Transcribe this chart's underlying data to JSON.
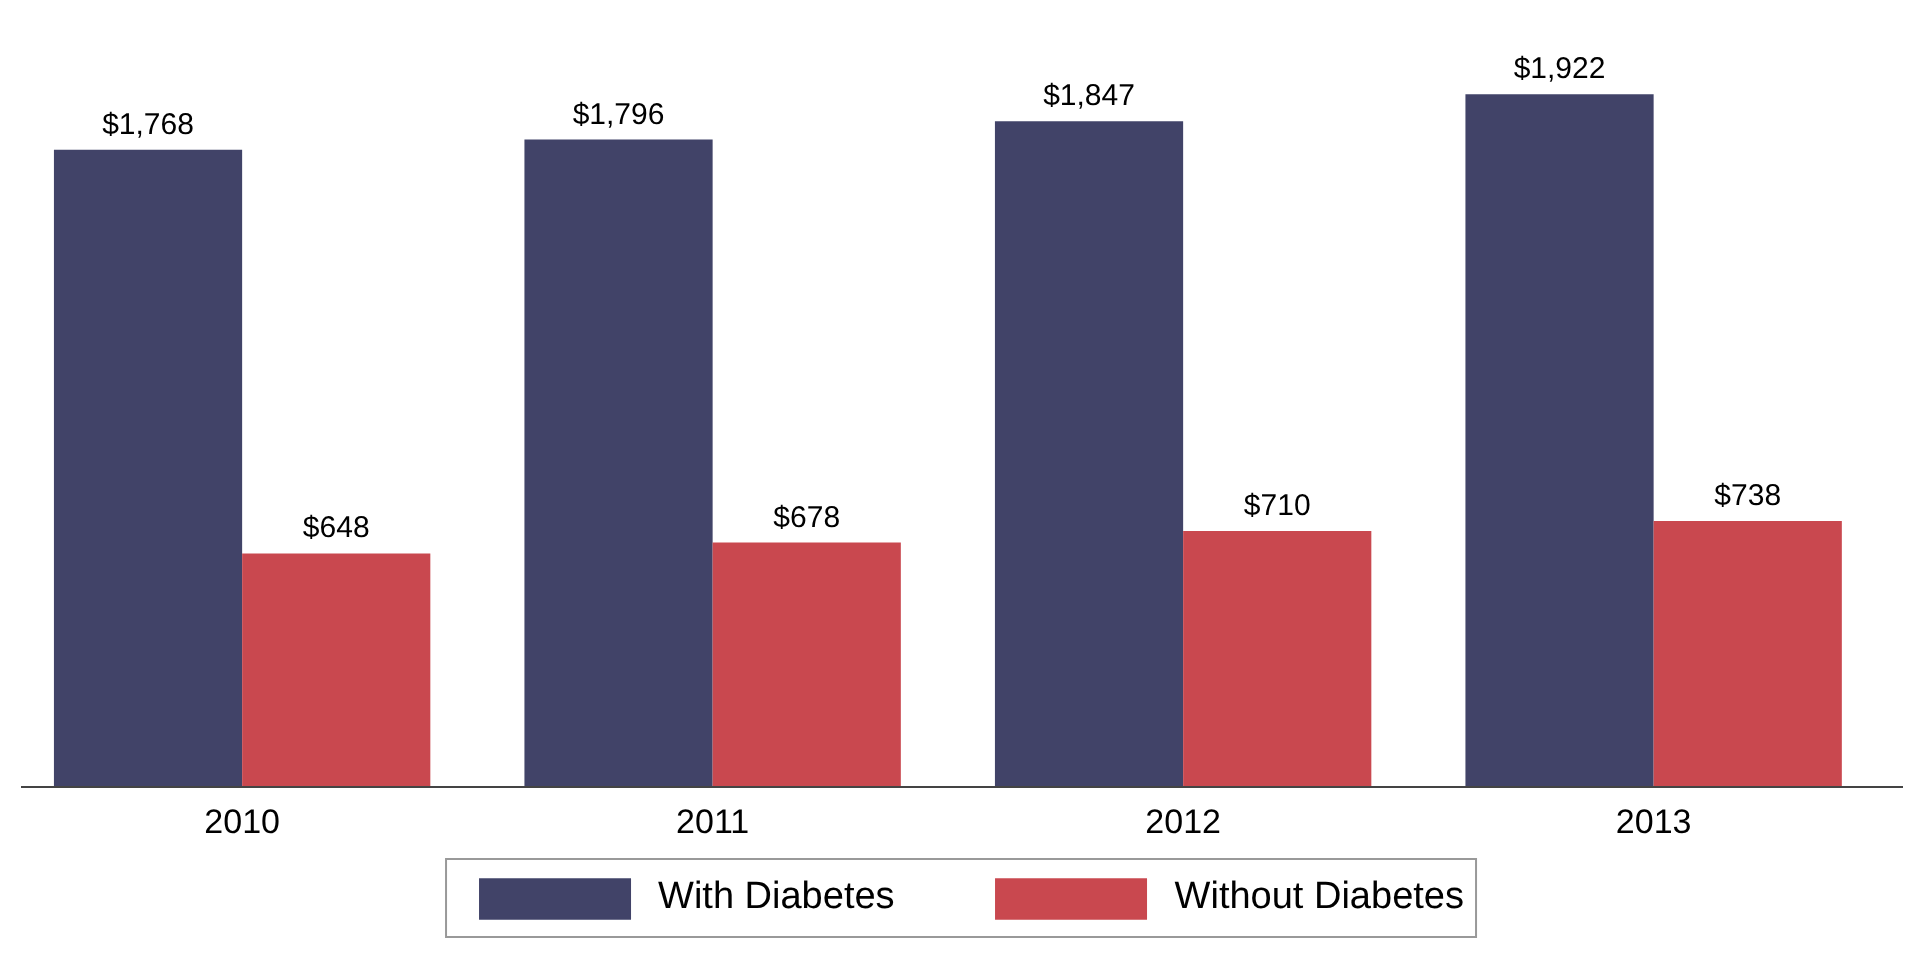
{
  "chart_data": {
    "type": "bar",
    "categories": [
      "2010",
      "2011",
      "2012",
      "2013"
    ],
    "series": [
      {
        "name": "With Diabetes",
        "color": "#414368",
        "values": [
          1768,
          1796,
          1847,
          1922
        ],
        "value_labels": [
          "$1,768",
          "$1,796",
          "$1,847",
          "$1,922"
        ]
      },
      {
        "name": "Without Diabetes",
        "color": "#c9484f",
        "values": [
          648,
          678,
          710,
          738
        ],
        "value_labels": [
          "$648",
          "$678",
          "$710",
          "$738"
        ]
      }
    ],
    "legend": "bottom"
  }
}
